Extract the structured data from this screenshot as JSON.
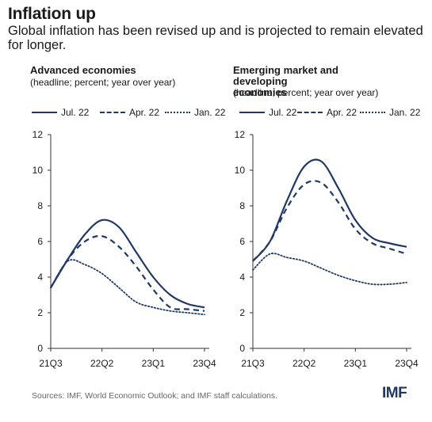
{
  "header": {
    "title": "Inflation up",
    "subtitle": "Global inflation has been revised up and is projected to remain elevated for longer."
  },
  "footer": {
    "source": "Sources: IMF, World Economic Outlook; and IMF staff calculations.",
    "logo": "IMF"
  },
  "colors": {
    "series": "#1f3864",
    "axis": "#333333"
  },
  "chart_data": [
    {
      "type": "line",
      "title": "Advanced economies",
      "subtitle": "(headline; percent; year over year)",
      "x": [
        "21Q3",
        "21Q4",
        "22Q1",
        "22Q2",
        "22Q3",
        "22Q4",
        "23Q1",
        "23Q2",
        "23Q3",
        "23Q4"
      ],
      "xticks": [
        "21Q3",
        "22Q2",
        "23Q1",
        "23Q4"
      ],
      "yticks": [
        0,
        2,
        4,
        6,
        8,
        10,
        12
      ],
      "ylim": [
        0,
        12
      ],
      "grid": false,
      "legend": "top",
      "series": [
        {
          "name": "Jul. 22",
          "style": "solid",
          "values": [
            3.4,
            5.0,
            6.4,
            7.2,
            6.8,
            5.4,
            4.0,
            3.0,
            2.5,
            2.3
          ]
        },
        {
          "name": "Apr. 22",
          "style": "dashed",
          "values": [
            3.4,
            5.0,
            6.0,
            6.3,
            5.7,
            4.6,
            3.3,
            2.3,
            2.2,
            2.1
          ]
        },
        {
          "name": "Jan. 22",
          "style": "dotted",
          "values": [
            3.4,
            4.9,
            4.7,
            4.2,
            3.4,
            2.6,
            2.3,
            2.1,
            2.0,
            1.9
          ]
        }
      ]
    },
    {
      "type": "line",
      "title": "Emerging market and developing economies",
      "subtitle": "(headline; percent; year over year)",
      "x": [
        "21Q3",
        "21Q4",
        "22Q1",
        "22Q2",
        "22Q3",
        "22Q4",
        "23Q1",
        "23Q2",
        "23Q3",
        "23Q4"
      ],
      "xticks": [
        "21Q3",
        "22Q2",
        "23Q1",
        "23Q4"
      ],
      "yticks": [
        0,
        2,
        4,
        6,
        8,
        10,
        12
      ],
      "ylim": [
        0,
        12
      ],
      "grid": false,
      "legend": "top",
      "series": [
        {
          "name": "Jul. 22",
          "style": "solid",
          "values": [
            4.9,
            6.0,
            8.3,
            10.2,
            10.5,
            9.0,
            7.2,
            6.2,
            5.9,
            5.7
          ]
        },
        {
          "name": "Apr. 22",
          "style": "dashed",
          "values": [
            4.9,
            6.0,
            7.9,
            9.2,
            9.3,
            8.2,
            6.7,
            5.9,
            5.6,
            5.3
          ]
        },
        {
          "name": "Jan. 22",
          "style": "dotted",
          "values": [
            4.4,
            5.3,
            5.1,
            4.9,
            4.5,
            4.1,
            3.8,
            3.6,
            3.6,
            3.7
          ]
        }
      ]
    }
  ]
}
